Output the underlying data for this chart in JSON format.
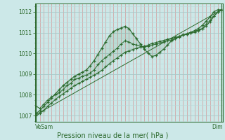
{
  "background_color": "#cce8e8",
  "plot_bg_color": "#cce8e8",
  "line_color": "#2d6a2d",
  "title": "Pression niveau de la mer( hPa )",
  "xlabel_left": "VeSam",
  "xlabel_right": "Dim",
  "ylim": [
    1006.7,
    1012.4
  ],
  "yticks": [
    1007,
    1008,
    1009,
    1010,
    1011,
    1012
  ],
  "line1_y": [
    1007.1,
    1007.25,
    1007.45,
    1007.65,
    1007.85,
    1008.05,
    1008.25,
    1008.45,
    1008.6,
    1008.75,
    1008.9,
    1009.0,
    1009.1,
    1009.2,
    1009.4,
    1009.65,
    1009.95,
    1010.25,
    1010.55,
    1010.85,
    1011.05,
    1011.15,
    1011.22,
    1011.3,
    1011.2,
    1010.95,
    1010.7,
    1010.45,
    1010.2,
    1010.0,
    1009.85,
    1009.9,
    1010.05,
    1010.2,
    1010.4,
    1010.6,
    1010.7,
    1010.8,
    1010.9,
    1010.9,
    1011.0,
    1011.1,
    1011.2,
    1011.35,
    1011.55,
    1011.75,
    1012.0,
    1012.1,
    1012.1
  ],
  "line2_y": [
    1007.45,
    1007.35,
    1007.55,
    1007.75,
    1007.9,
    1008.0,
    1008.1,
    1008.25,
    1008.45,
    1008.55,
    1008.75,
    1008.8,
    1008.9,
    1008.95,
    1009.05,
    1009.2,
    1009.45,
    1009.65,
    1009.8,
    1009.95,
    1010.1,
    1010.25,
    1010.45,
    1010.6,
    1010.55,
    1010.45,
    1010.4,
    1010.35,
    1010.3,
    1010.35,
    1010.4,
    1010.45,
    1010.5,
    1010.55,
    1010.6,
    1010.65,
    1010.72,
    1010.78,
    1010.88,
    1010.95,
    1011.02,
    1011.08,
    1011.12,
    1011.2,
    1011.4,
    1011.58,
    1011.8,
    1012.0,
    1012.08
  ],
  "line3_y": [
    1007.0,
    1007.1,
    1007.25,
    1007.45,
    1007.6,
    1007.78,
    1007.92,
    1008.05,
    1008.18,
    1008.32,
    1008.45,
    1008.55,
    1008.65,
    1008.75,
    1008.85,
    1008.95,
    1009.05,
    1009.18,
    1009.35,
    1009.5,
    1009.65,
    1009.78,
    1009.92,
    1010.05,
    1010.12,
    1010.18,
    1010.25,
    1010.3,
    1010.35,
    1010.4,
    1010.48,
    1010.52,
    1010.58,
    1010.62,
    1010.68,
    1010.72,
    1010.78,
    1010.82,
    1010.88,
    1010.92,
    1010.98,
    1011.02,
    1011.08,
    1011.18,
    1011.32,
    1011.52,
    1011.78,
    1011.98,
    1012.08
  ],
  "ref_line_y": [
    1007.05,
    1012.1
  ],
  "n_points": 49,
  "vert_grid_color": "#d49898",
  "horiz_major_color": "#a8c8c8",
  "horiz_minor_color": "#b8d8d8"
}
